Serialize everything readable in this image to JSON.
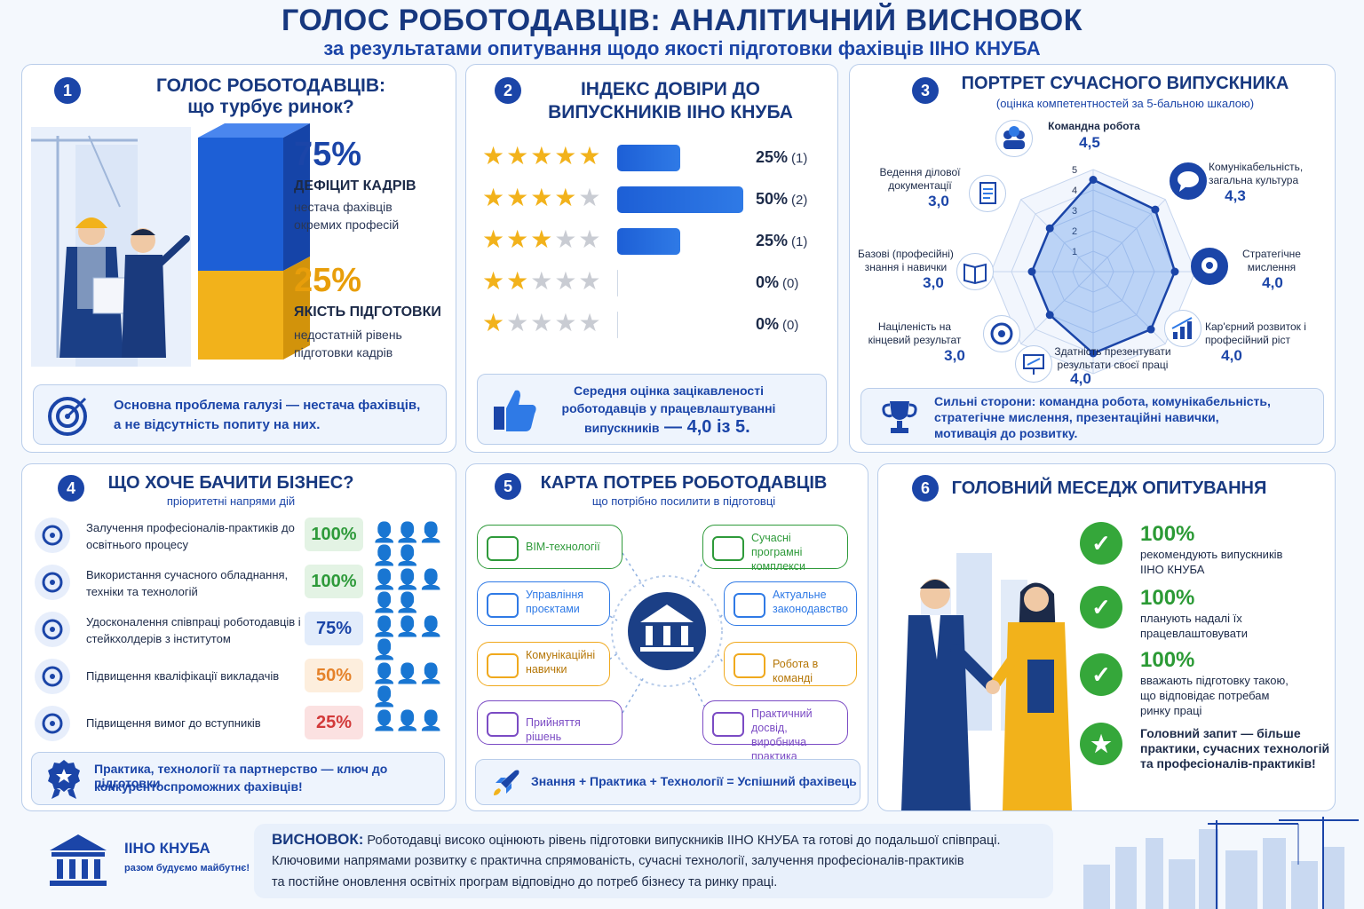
{
  "header": {
    "title": "ГОЛОС РОБОТОДАВЦІВ: АНАЛІТИЧНИЙ ВИСНОВОК",
    "subtitle": "за результатами опитування щодо якості підготовки фахівців ІІНО КНУБА"
  },
  "panel1": {
    "num": "1",
    "title_l1": "ГОЛОС РОБОТОДАВЦІВ:",
    "title_l2": "що турбує ринок?",
    "stat1": {
      "pct": "75%",
      "label": "ДЕФІЦИТ КАДРІВ",
      "desc1": "нестача фахівців",
      "desc2": "окремих професій"
    },
    "stat2": {
      "pct": "25%",
      "label": "ЯКІСТЬ ПІДГОТОВКИ",
      "desc1": "недостатній рівень",
      "desc2": "підготовки кадрів"
    },
    "callout1": "Основна проблема галузі — нестача фахівців,",
    "callout2": "а не відсутність попиту на них."
  },
  "panel2": {
    "num": "2",
    "title_l1": "ІНДЕКС ДОВІРИ ДО",
    "title_l2": "ВИПУСКНИКІВ ІІНО КНУБА",
    "callout1": "Середня оцінка зацікавленості",
    "callout2": "роботодавців у працевлаштуванні",
    "callout3a": "випускників",
    "callout3b": " — 4,0 із 5."
  },
  "chart_data": {
    "type": "bar",
    "categories": [
      "5 stars",
      "4 stars",
      "3 stars",
      "2 stars",
      "1 star"
    ],
    "values": [
      25,
      50,
      25,
      0,
      0
    ],
    "counts": [
      1,
      2,
      1,
      0,
      0
    ],
    "value_labels": [
      "25%",
      "50%",
      "25%",
      "0%",
      "0%"
    ],
    "count_labels": [
      "(1)",
      "(2)",
      "(1)",
      "(0)",
      "(0)"
    ]
  },
  "panel3": {
    "num": "3",
    "title": "ПОРТРЕТ СУЧАСНОГО ВИПУСКНИКА",
    "subtitle": "(оцінка компетентностей за 5-бальною шкалою)",
    "scale": [
      "1",
      "2",
      "3",
      "4",
      "5"
    ],
    "axes": [
      {
        "label": "Командна робота",
        "value": 4.5,
        "value_text": "4,5"
      },
      {
        "label": "Комунікабельність, загальна культура",
        "value": 4.3,
        "value_text": "4,3"
      },
      {
        "label": "Стратегічне мислення",
        "value": 4.0,
        "value_text": "4,0"
      },
      {
        "label": "Кар'єрний розвиток і професійний ріст",
        "value": 4.0,
        "value_text": "4,0"
      },
      {
        "label": "Здатність презентувати результати своєї праці",
        "value": 4.0,
        "value_text": "4,0"
      },
      {
        "label": "Націленість на кінцевий результат",
        "value": 3.0,
        "value_text": "3,0"
      },
      {
        "label": "Базові (професійні) знання і навички",
        "value": 3.0,
        "value_text": "3,0"
      },
      {
        "label": "Ведення ділової документації",
        "value": 3.0,
        "value_text": "3,0"
      }
    ],
    "callout1": "Сильні сторони: командна робота, комунікабельність,",
    "callout2": "стратегічне мислення, презентаційні навички,",
    "callout3": "мотивація до розвитку."
  },
  "panel4": {
    "num": "4",
    "title": "ЩО ХОЧЕ БАЧИТИ БІЗНЕС?",
    "subtitle": "пріоритетні напрями дій",
    "rows": [
      {
        "text": "Залучення професіоналів-практиків до освітнього процесу",
        "pct": "100%",
        "color": "#2e9a3a",
        "bg": "#e3f3e4",
        "filled": 5
      },
      {
        "text": "Використання сучасного обладнання, техніки та технологій",
        "pct": "100%",
        "color": "#2e9a3a",
        "bg": "#e3f3e4",
        "filled": 5
      },
      {
        "text": "Удосконалення співпраці роботодавців і стейкхолдерів з інститутом",
        "pct": "75%",
        "color": "#1b45a8",
        "bg": "#e2ecfb",
        "filled": 4
      },
      {
        "text": "Підвищення кваліфікації викладачів",
        "pct": "50%",
        "color": "#e5822a",
        "bg": "#fdeedd",
        "filled": 2
      },
      {
        "text": "Підвищення вимог до вступників",
        "pct": "25%",
        "color": "#d23a3a",
        "bg": "#fbe1e1",
        "filled": 1
      }
    ],
    "callout1": "Практика, технології та партнерство — ключ до підготовки",
    "callout2": "конкурентоспроможних фахівців!"
  },
  "panel5": {
    "num": "5",
    "title": "КАРТА ПОТРЕБ РОБОТОДАВЦІВ",
    "subtitle": "що потрібно посилити в підготовці",
    "nodes": [
      {
        "text": "BIM-технології",
        "color": "#2e9a3a"
      },
      {
        "text": "Сучасні програмні комплекси",
        "color": "#2e9a3a"
      },
      {
        "text": "Управління проєктами",
        "color": "#2f7ae6"
      },
      {
        "text": "Актуальне законодавство",
        "color": "#2f7ae6"
      },
      {
        "text": "Комунікаційні навички",
        "color": "#f0a91d"
      },
      {
        "text": "Робота в команді",
        "color": "#f0a91d"
      },
      {
        "text": "Прийняття рішень",
        "color": "#7b4bc4"
      },
      {
        "text": "Практичний досвід, виробнича практика",
        "color": "#7b4bc4"
      }
    ],
    "callout": "Знання + Практика + Технології = Успішний фахівець"
  },
  "panel6": {
    "num": "6",
    "title": "ГОЛОВНИЙ МЕСЕДЖ ОПИТУВАННЯ",
    "items": [
      {
        "pct": "100%",
        "l1": "рекомендують випускників",
        "l2": "ІІНО КНУБА",
        "l3": ""
      },
      {
        "pct": "100%",
        "l1": "планують надалі їх",
        "l2": "працевлаштовувати",
        "l3": ""
      },
      {
        "pct": "100%",
        "l1": "вважають підготовку такою,",
        "l2": "що відповідає потребам",
        "l3": "ринку праці"
      }
    ],
    "final1": "Головний запит — більше",
    "final2": "практики, сучасних технологій",
    "final3": "та професіоналів-практиків!"
  },
  "footer": {
    "logo_name": "ІІНО КНУБА",
    "logo_slogan": "разом будуємо майбутнє!",
    "conclusion_label": "ВИСНОВОК:",
    "conclusion1": " Роботодавці високо оцінюють рівень підготовки випускників ІІНО КНУБА та готові до подальшої співпраці.",
    "conclusion2": "Ключовими напрямами розвитку є практична спрямованість, сучасні технології, залучення професіоналів-практиків",
    "conclusion3": "та постійне оновлення освітніх програм відповідно до потреб бізнесу та ринку праці."
  }
}
